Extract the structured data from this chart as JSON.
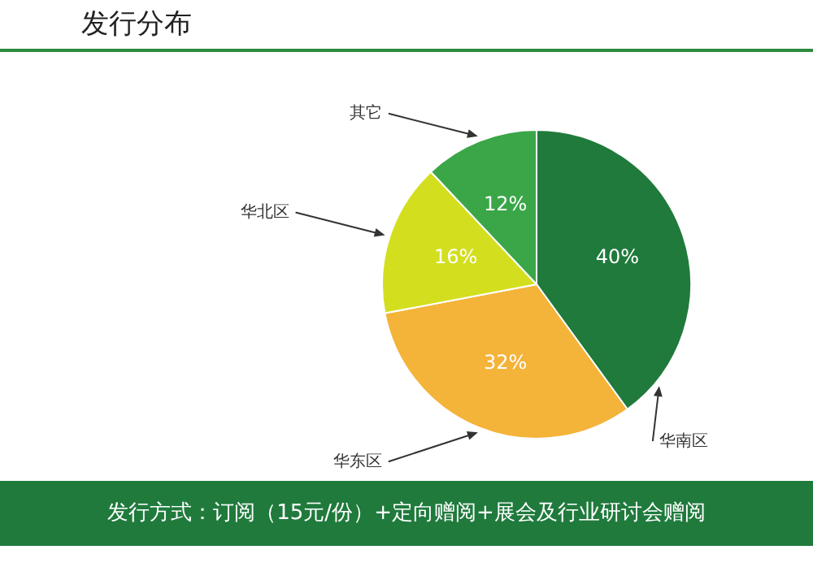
{
  "chart_data": {
    "type": "pie",
    "title": "发行分布",
    "categories": [
      "华南区",
      "华东区",
      "华北区",
      "其它"
    ],
    "values": [
      40,
      32,
      16,
      12
    ],
    "colors": [
      "#1f7a3c",
      "#f4b339",
      "#d3df1e",
      "#3aa648"
    ],
    "value_labels": [
      "40%",
      "32%",
      "16%",
      "12%"
    ],
    "annotations": [
      "发行方式：订阅（15元/份）+定向赠阅+展会及行业研讨会赠阅"
    ]
  }
}
